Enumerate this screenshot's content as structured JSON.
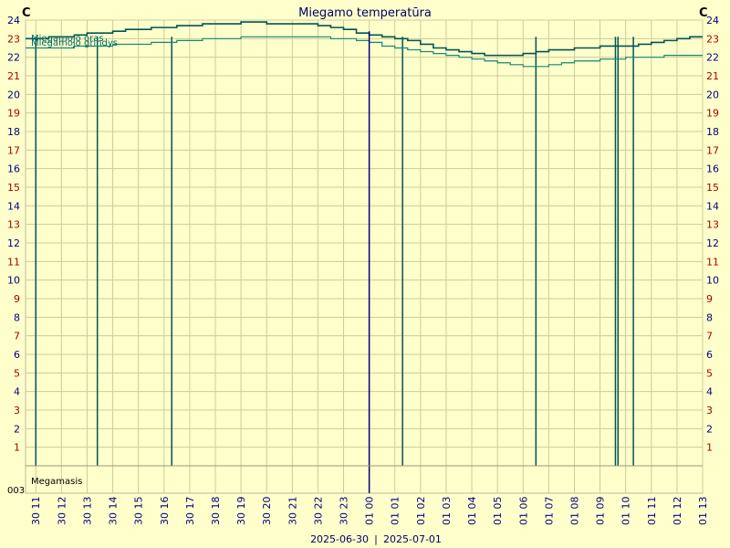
{
  "chart_data": {
    "type": "line",
    "title": "Miegamo temperatūra",
    "unit_left": "C",
    "unit_right": "C",
    "ylim": [
      0,
      24
    ],
    "y_ticks": [
      1,
      2,
      3,
      4,
      5,
      6,
      7,
      8,
      9,
      10,
      11,
      12,
      13,
      14,
      15,
      16,
      17,
      18,
      19,
      20,
      21,
      22,
      23,
      24
    ],
    "x_tick_labels": [
      "30 11",
      "30 12",
      "30 13",
      "30 14",
      "30 15",
      "30 16",
      "30 17",
      "30 18",
      "30 19",
      "30 20",
      "30 21",
      "30 22",
      "30 23",
      "01 00",
      "01 01",
      "01 02",
      "01 03",
      "01 04",
      "01 05",
      "01 06",
      "01 07",
      "01 08",
      "01 09",
      "01 10",
      "01 11",
      "01 12",
      "01 13"
    ],
    "xlim_hours": [
      10.6,
      37.0
    ],
    "date_left": "2025-06-30",
    "date_right": "2025-07-01",
    "bottom_band_label": "Megamasis",
    "bottom_band_value": "003",
    "series": [
      {
        "name": "Miegamojo oras",
        "color": "#005555",
        "x": [
          10.6,
          11.0,
          11.5,
          12.0,
          12.5,
          13.0,
          13.5,
          14.0,
          14.5,
          15.0,
          15.5,
          16.0,
          16.5,
          17.0,
          17.5,
          18.0,
          18.5,
          19.0,
          19.5,
          20.0,
          20.5,
          21.0,
          21.5,
          22.0,
          22.5,
          23.0,
          23.5,
          24.0,
          24.5,
          25.0,
          25.5,
          26.0,
          26.5,
          27.0,
          27.5,
          28.0,
          28.5,
          29.0,
          29.5,
          30.0,
          30.5,
          31.0,
          31.5,
          32.0,
          32.5,
          33.0,
          33.5,
          34.0,
          34.5,
          35.0,
          35.5,
          36.0,
          36.5,
          37.0
        ],
        "y": [
          23.0,
          23.0,
          23.1,
          23.1,
          23.2,
          23.3,
          23.3,
          23.4,
          23.5,
          23.5,
          23.6,
          23.6,
          23.7,
          23.7,
          23.8,
          23.8,
          23.8,
          23.9,
          23.9,
          23.8,
          23.8,
          23.8,
          23.8,
          23.7,
          23.6,
          23.5,
          23.3,
          23.2,
          23.1,
          23.0,
          22.9,
          22.7,
          22.5,
          22.4,
          22.3,
          22.2,
          22.1,
          22.1,
          22.1,
          22.2,
          22.3,
          22.4,
          22.4,
          22.5,
          22.5,
          22.6,
          22.6,
          22.6,
          22.7,
          22.8,
          22.9,
          23.0,
          23.1,
          23.1
        ]
      },
      {
        "name": "Miegamojo grindys",
        "color": "#118877",
        "x": [
          10.6,
          11.0,
          11.5,
          12.0,
          12.5,
          13.0,
          13.5,
          14.0,
          14.5,
          15.0,
          15.5,
          16.0,
          16.5,
          17.0,
          17.5,
          18.0,
          18.5,
          19.0,
          19.5,
          20.0,
          20.5,
          21.0,
          21.5,
          22.0,
          22.5,
          23.0,
          23.5,
          24.0,
          24.5,
          25.0,
          25.5,
          26.0,
          26.5,
          27.0,
          27.5,
          28.0,
          28.5,
          29.0,
          29.5,
          30.0,
          30.5,
          31.0,
          31.5,
          32.0,
          32.5,
          33.0,
          33.5,
          34.0,
          34.5,
          35.0,
          35.5,
          36.0,
          36.5,
          37.0
        ],
        "y": [
          22.5,
          22.5,
          22.5,
          22.5,
          22.6,
          22.6,
          22.6,
          22.7,
          22.7,
          22.7,
          22.8,
          22.8,
          22.9,
          22.9,
          23.0,
          23.0,
          23.0,
          23.1,
          23.1,
          23.1,
          23.1,
          23.1,
          23.1,
          23.1,
          23.0,
          23.0,
          22.9,
          22.8,
          22.6,
          22.5,
          22.4,
          22.3,
          22.2,
          22.1,
          22.0,
          21.9,
          21.8,
          21.7,
          21.6,
          21.5,
          21.5,
          21.6,
          21.7,
          21.8,
          21.8,
          21.9,
          21.9,
          22.0,
          22.0,
          22.0,
          22.1,
          22.1,
          22.1,
          22.1
        ]
      }
    ],
    "dropouts": [
      {
        "x": 11.0,
        "y_min": 0.0
      },
      {
        "x": 13.4,
        "y_min": 0.0
      },
      {
        "x": 16.3,
        "y_min": 0.0
      },
      {
        "x": 25.3,
        "y_min": 0.0
      },
      {
        "x": 30.5,
        "y_min": 0.0
      },
      {
        "x": 33.6,
        "y_min": 0.0
      },
      {
        "x": 33.7,
        "y_min": 0.0
      },
      {
        "x": 34.3,
        "y_min": 0.0
      }
    ],
    "marker_x": 24.0,
    "grid": true,
    "legend_position": "top-left"
  }
}
